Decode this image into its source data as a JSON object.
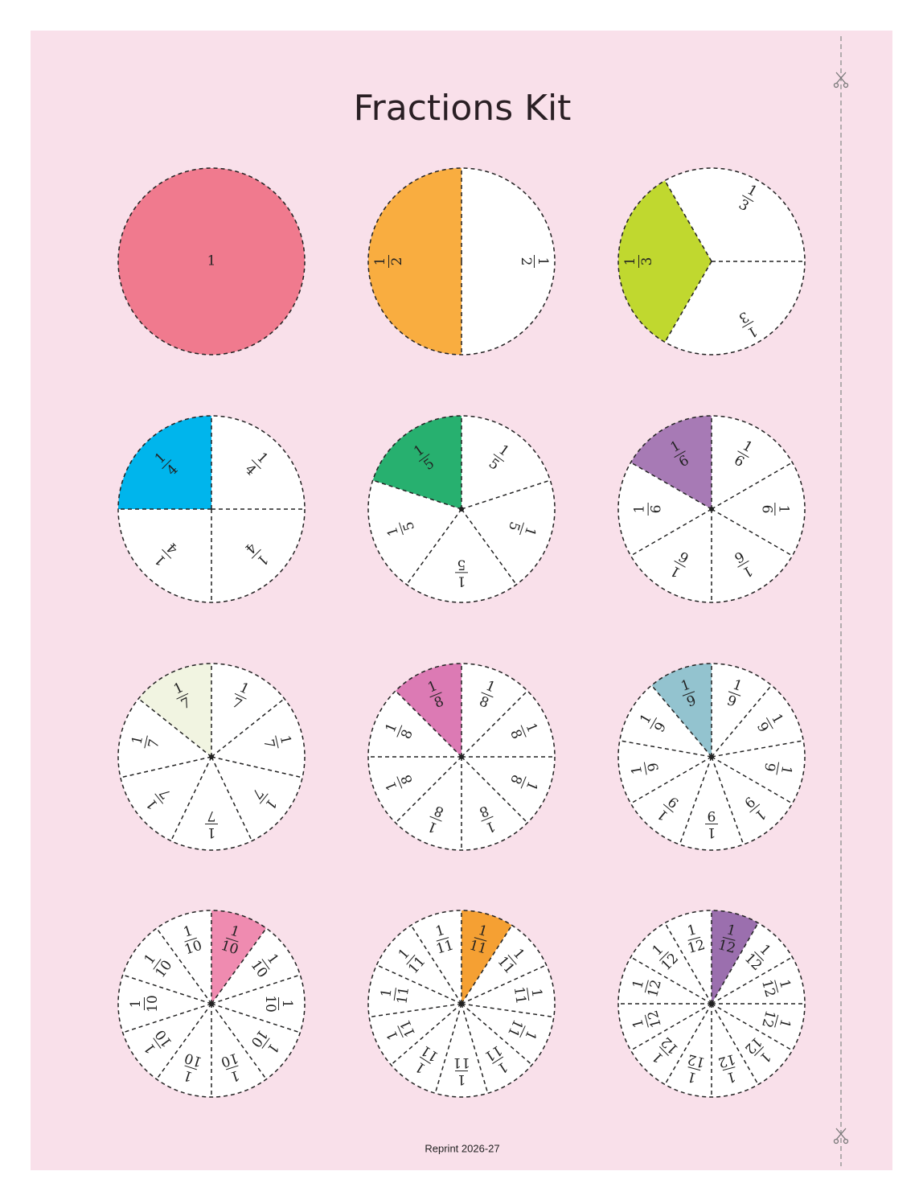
{
  "title": "Fractions Kit",
  "footer": "Reprint 2026-27",
  "circles": [
    {
      "color": "#f07a8e",
      "labels": [
        {
          "n": "1"
        }
      ]
    },
    {
      "color": "#f9ad40",
      "labels": [
        {
          "n": "1",
          "d": "2"
        },
        {
          "n": "1",
          "d": "2"
        }
      ]
    },
    {
      "color": "#c0d82f",
      "labels": [
        {
          "n": "1",
          "d": "3"
        },
        {
          "n": "1",
          "d": "3"
        },
        {
          "n": "1",
          "d": "3"
        }
      ]
    },
    {
      "color": "#00b5ec",
      "labels": [
        {
          "n": "1",
          "d": "4"
        },
        {
          "n": "1",
          "d": "4"
        },
        {
          "n": "1",
          "d": "4"
        },
        {
          "n": "1",
          "d": "4"
        }
      ]
    },
    {
      "color": "#27b06f",
      "labels": [
        {
          "n": "1",
          "d": "5"
        },
        {
          "n": "1",
          "d": "5"
        },
        {
          "n": "1",
          "d": "5"
        },
        {
          "n": "1",
          "d": "5"
        },
        {
          "n": "1",
          "d": "5"
        }
      ]
    },
    {
      "color": "#a77ab5",
      "labels": [
        {
          "n": "1",
          "d": "6"
        },
        {
          "n": "1",
          "d": "6"
        },
        {
          "n": "1",
          "d": "6"
        },
        {
          "n": "1",
          "d": "6"
        },
        {
          "n": "1",
          "d": "6"
        },
        {
          "n": "1",
          "d": "6"
        }
      ]
    },
    {
      "color": "#f1f4e1",
      "labels": [
        {
          "n": "1",
          "d": "7"
        },
        {
          "n": "1",
          "d": "7"
        },
        {
          "n": "1",
          "d": "7"
        },
        {
          "n": "1",
          "d": "7"
        },
        {
          "n": "1",
          "d": "7"
        },
        {
          "n": "1",
          "d": "7"
        },
        {
          "n": "1",
          "d": "7"
        }
      ]
    },
    {
      "color": "#dc7ab4",
      "labels": [
        {
          "n": "1",
          "d": "8"
        },
        {
          "n": "1",
          "d": "8"
        },
        {
          "n": "1",
          "d": "8"
        },
        {
          "n": "1",
          "d": "8"
        },
        {
          "n": "1",
          "d": "8"
        },
        {
          "n": "1",
          "d": "8"
        },
        {
          "n": "1",
          "d": "8"
        },
        {
          "n": "1",
          "d": "8"
        }
      ]
    },
    {
      "color": "#93c3cf",
      "labels": [
        {
          "n": "1",
          "d": "9"
        },
        {
          "n": "1",
          "d": "9"
        },
        {
          "n": "1",
          "d": "9"
        },
        {
          "n": "1",
          "d": "9"
        },
        {
          "n": "1",
          "d": "9"
        },
        {
          "n": "1",
          "d": "9"
        },
        {
          "n": "1",
          "d": "9"
        },
        {
          "n": "1",
          "d": "9"
        },
        {
          "n": "1",
          "d": "9"
        }
      ]
    },
    {
      "color": "#ef8bb0",
      "labels": [
        {
          "n": "1",
          "d": "10"
        },
        {
          "n": "1",
          "d": "10"
        },
        {
          "n": "1",
          "d": "10"
        },
        {
          "n": "1",
          "d": "10"
        },
        {
          "n": "1",
          "d": "10"
        },
        {
          "n": "1",
          "d": "10"
        },
        {
          "n": "1",
          "d": "10"
        },
        {
          "n": "1",
          "d": "10"
        },
        {
          "n": "1",
          "d": "10"
        },
        {
          "n": "1",
          "d": "10"
        }
      ]
    },
    {
      "color": "#f5a033",
      "labels": [
        {
          "n": "1",
          "d": "11"
        },
        {
          "n": "1",
          "d": "11"
        },
        {
          "n": "1",
          "d": "11"
        },
        {
          "n": "1",
          "d": "11"
        },
        {
          "n": "1",
          "d": "11"
        },
        {
          "n": "1",
          "d": "11"
        },
        {
          "n": "1",
          "d": "11"
        },
        {
          "n": "1",
          "d": "11"
        },
        {
          "n": "1",
          "d": "11"
        },
        {
          "n": "1",
          "d": "11"
        },
        {
          "n": "1",
          "d": "11"
        }
      ]
    },
    {
      "color": "#9b6fae",
      "labels": [
        {
          "n": "1",
          "d": "12"
        },
        {
          "n": "1",
          "d": "12"
        },
        {
          "n": "1",
          "d": "12"
        },
        {
          "n": "1",
          "d": "12"
        },
        {
          "n": "1",
          "d": "12"
        },
        {
          "n": "1",
          "d": "12"
        },
        {
          "n": "1",
          "d": "12"
        },
        {
          "n": "1",
          "d": "12"
        },
        {
          "n": "1",
          "d": "12"
        },
        {
          "n": "1",
          "d": "12"
        },
        {
          "n": "1",
          "d": "12"
        },
        {
          "n": "1",
          "d": "12"
        }
      ]
    }
  ]
}
